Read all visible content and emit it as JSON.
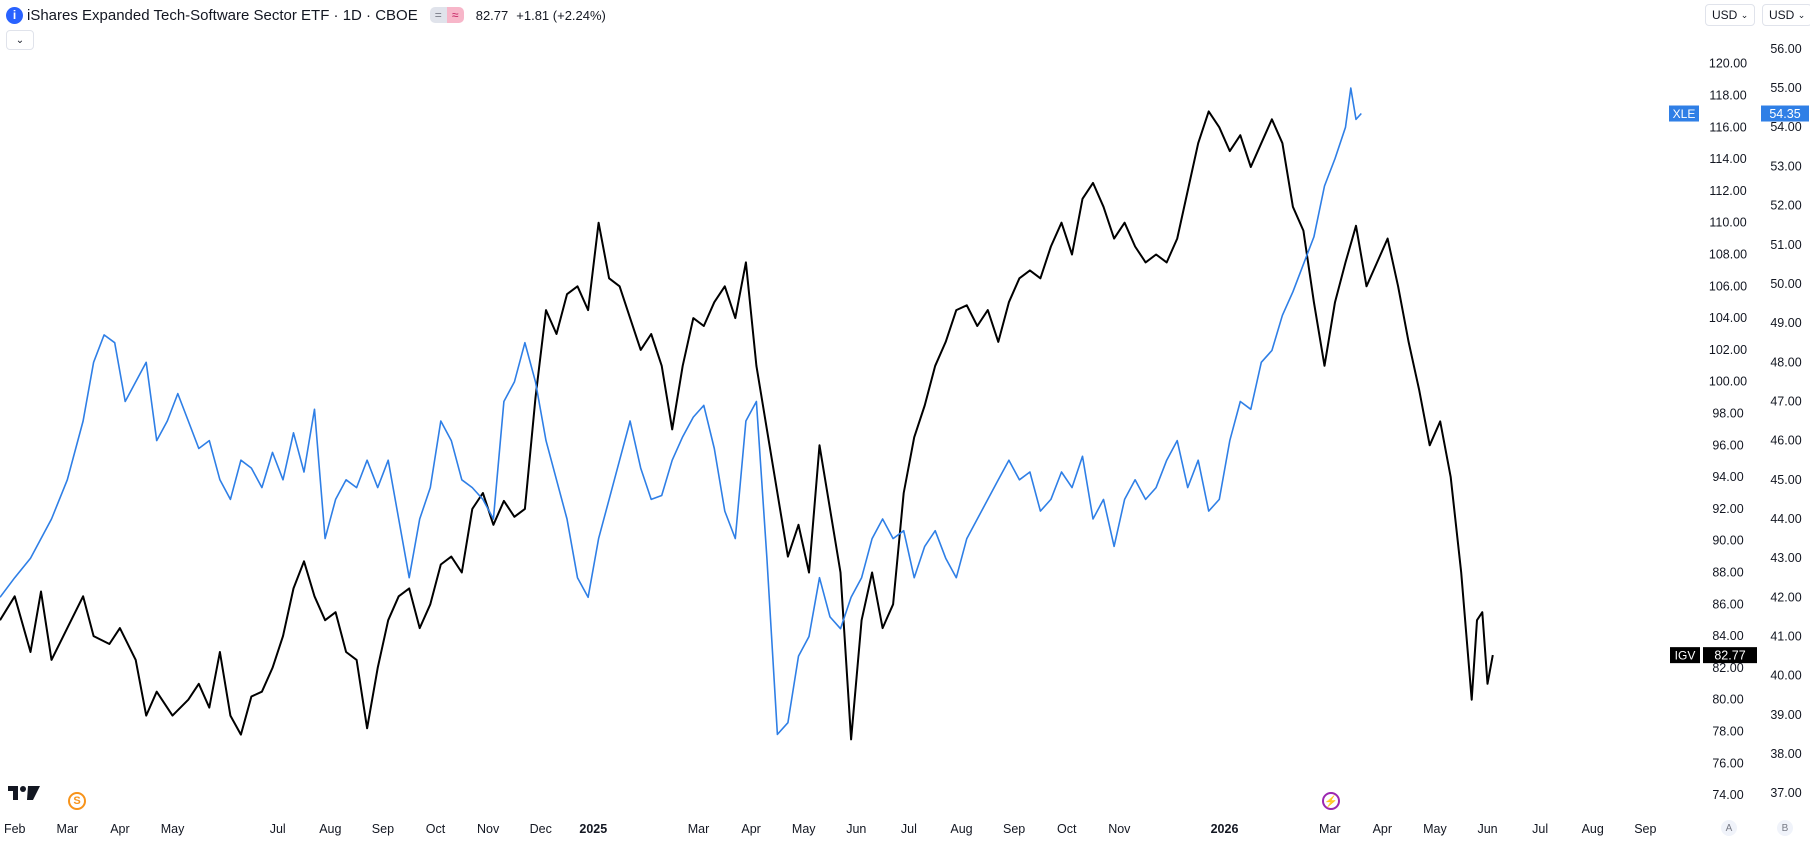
{
  "header": {
    "info_icon": "i",
    "title": "iShares Expanded Tech-Software Sector ETF · 1D · CBOE",
    "pill_icons": [
      "=",
      "≈"
    ],
    "price": "82.77",
    "change": "+1.81 (+2.24%)",
    "collapse_icon": "⌄"
  },
  "currency_buttons": {
    "left": "USD",
    "right": "USD"
  },
  "event_icons": {
    "s_label": "S",
    "bolt_label": "⚡"
  },
  "bottom_buttons": [
    "A",
    "B"
  ],
  "colors": {
    "igv": "#000000",
    "xle": "#2f7fe6",
    "badge_xle": "#2f7fe6",
    "badge_igv": "#000000"
  },
  "chart_data": {
    "type": "line",
    "title": "iShares Expanded Tech-Software Sector ETF",
    "x_ticks": [
      {
        "label": "Feb",
        "x": 1.5
      },
      {
        "label": "Mar",
        "x": 2.5
      },
      {
        "label": "Apr",
        "x": 3.5
      },
      {
        "label": "May",
        "x": 4.5
      },
      {
        "label": "Jul",
        "x": 6.5
      },
      {
        "label": "Aug",
        "x": 7.5
      },
      {
        "label": "Sep",
        "x": 8.5
      },
      {
        "label": "Oct",
        "x": 9.5
      },
      {
        "label": "Nov",
        "x": 10.5
      },
      {
        "label": "Dec",
        "x": 11.5
      },
      {
        "label": "2025",
        "x": 12.5,
        "bold": true
      },
      {
        "label": "Mar",
        "x": 14.5
      },
      {
        "label": "Apr",
        "x": 15.5
      },
      {
        "label": "May",
        "x": 16.5
      },
      {
        "label": "Jun",
        "x": 17.5
      },
      {
        "label": "Jul",
        "x": 18.5
      },
      {
        "label": "Aug",
        "x": 19.5
      },
      {
        "label": "Sep",
        "x": 20.5
      },
      {
        "label": "Oct",
        "x": 21.5
      },
      {
        "label": "Nov",
        "x": 22.5
      },
      {
        "label": "2026",
        "x": 24.5,
        "bold": true
      },
      {
        "label": "Mar",
        "x": 26.5
      },
      {
        "label": "Apr",
        "x": 27.5
      },
      {
        "label": "May",
        "x": 28.5
      },
      {
        "label": "Jun",
        "x": 29.5
      },
      {
        "label": "Jul",
        "x": 30.5
      },
      {
        "label": "Aug",
        "x": 31.5
      },
      {
        "label": "Sep",
        "x": 32.5
      }
    ],
    "x_range": [
      1.22,
      36.5
    ],
    "left_axis": {
      "ylim": [
        73.5,
        121.3
      ],
      "ticks": [
        "120.00",
        "118.00",
        "116.00",
        "114.00",
        "112.00",
        "110.00",
        "108.00",
        "106.00",
        "104.00",
        "102.00",
        "100.00",
        "98.00",
        "96.00",
        "94.00",
        "92.00",
        "90.00",
        "88.00",
        "86.00",
        "84.00",
        "82.00",
        "80.00",
        "78.00",
        "76.00",
        "74.00"
      ]
    },
    "right_axis": {
      "ylim": [
        36.75,
        56.15
      ],
      "ticks": [
        "56.00",
        "55.00",
        "54.00",
        "53.00",
        "52.00",
        "51.00",
        "50.00",
        "49.00",
        "48.00",
        "47.00",
        "46.00",
        "45.00",
        "44.00",
        "43.00",
        "42.00",
        "41.00",
        "40.00",
        "39.00",
        "38.00",
        "37.00"
      ]
    },
    "series": [
      {
        "name": "IGV",
        "axis": "left",
        "color": "#000000",
        "last_label": "82.77",
        "points": [
          [
            1.22,
            85
          ],
          [
            1.5,
            86.5
          ],
          [
            1.8,
            83
          ],
          [
            2.0,
            86.8
          ],
          [
            2.2,
            82.5
          ],
          [
            2.5,
            84.5
          ],
          [
            2.8,
            86.5
          ],
          [
            3.0,
            84
          ],
          [
            3.3,
            83.5
          ],
          [
            3.5,
            84.5
          ],
          [
            3.8,
            82.5
          ],
          [
            4.0,
            79
          ],
          [
            4.2,
            80.5
          ],
          [
            4.5,
            79
          ],
          [
            4.8,
            80
          ],
          [
            5.0,
            81
          ],
          [
            5.2,
            79.5
          ],
          [
            5.4,
            83
          ],
          [
            5.6,
            79
          ],
          [
            5.8,
            77.8
          ],
          [
            6.0,
            80.2
          ],
          [
            6.2,
            80.5
          ],
          [
            6.4,
            82
          ],
          [
            6.6,
            84
          ],
          [
            6.8,
            87
          ],
          [
            7.0,
            88.7
          ],
          [
            7.2,
            86.5
          ],
          [
            7.4,
            85
          ],
          [
            7.6,
            85.5
          ],
          [
            7.8,
            83
          ],
          [
            8.0,
            82.5
          ],
          [
            8.2,
            78.2
          ],
          [
            8.4,
            82
          ],
          [
            8.6,
            85
          ],
          [
            8.8,
            86.5
          ],
          [
            9.0,
            87
          ],
          [
            9.2,
            84.5
          ],
          [
            9.4,
            86
          ],
          [
            9.6,
            88.5
          ],
          [
            9.8,
            89
          ],
          [
            10.0,
            88
          ],
          [
            10.2,
            92
          ],
          [
            10.4,
            93
          ],
          [
            10.6,
            91
          ],
          [
            10.8,
            92.5
          ],
          [
            11.0,
            91.5
          ],
          [
            11.2,
            92
          ],
          [
            11.4,
            99
          ],
          [
            11.6,
            104.5
          ],
          [
            11.8,
            103
          ],
          [
            12.0,
            105.5
          ],
          [
            12.2,
            106
          ],
          [
            12.4,
            104.5
          ],
          [
            12.6,
            110
          ],
          [
            12.8,
            106.5
          ],
          [
            13.0,
            106
          ],
          [
            13.2,
            104
          ],
          [
            13.4,
            102
          ],
          [
            13.6,
            103
          ],
          [
            13.8,
            101
          ],
          [
            14.0,
            97
          ],
          [
            14.2,
            101
          ],
          [
            14.4,
            104
          ],
          [
            14.6,
            103.5
          ],
          [
            14.8,
            105
          ],
          [
            15.0,
            106
          ],
          [
            15.2,
            104
          ],
          [
            15.4,
            107.5
          ],
          [
            15.6,
            101
          ],
          [
            15.8,
            97
          ],
          [
            16.0,
            93
          ],
          [
            16.2,
            89
          ],
          [
            16.4,
            91
          ],
          [
            16.6,
            88
          ],
          [
            16.8,
            96
          ],
          [
            17.0,
            92
          ],
          [
            17.2,
            88
          ],
          [
            17.4,
            77.5
          ],
          [
            17.6,
            85
          ],
          [
            17.8,
            88
          ],
          [
            18.0,
            84.5
          ],
          [
            18.2,
            86
          ],
          [
            18.4,
            93
          ],
          [
            18.6,
            96.5
          ],
          [
            18.8,
            98.5
          ],
          [
            19.0,
            101
          ],
          [
            19.2,
            102.5
          ],
          [
            19.4,
            104.5
          ],
          [
            19.6,
            104.8
          ],
          [
            19.8,
            103.5
          ],
          [
            20.0,
            104.5
          ],
          [
            20.2,
            102.5
          ],
          [
            20.4,
            105
          ],
          [
            20.6,
            106.5
          ],
          [
            20.8,
            107
          ],
          [
            21.0,
            106.5
          ],
          [
            21.2,
            108.5
          ],
          [
            21.4,
            110
          ],
          [
            21.6,
            108
          ],
          [
            21.8,
            111.5
          ],
          [
            22.0,
            112.5
          ],
          [
            22.2,
            111
          ],
          [
            22.4,
            109
          ],
          [
            22.6,
            110
          ],
          [
            22.8,
            108.5
          ],
          [
            23.0,
            107.5
          ],
          [
            23.2,
            108
          ],
          [
            23.4,
            107.5
          ],
          [
            23.6,
            109
          ],
          [
            23.8,
            112
          ],
          [
            24.0,
            115
          ],
          [
            24.2,
            117
          ],
          [
            24.4,
            116
          ],
          [
            24.6,
            114.5
          ],
          [
            24.8,
            115.5
          ],
          [
            25.0,
            113.5
          ],
          [
            25.2,
            115
          ],
          [
            25.4,
            116.5
          ],
          [
            25.6,
            115
          ],
          [
            25.8,
            111
          ],
          [
            26.0,
            109.5
          ],
          [
            26.2,
            105
          ],
          [
            26.4,
            101
          ],
          [
            26.6,
            105
          ],
          [
            26.8,
            107.5
          ],
          [
            27.0,
            109.8
          ],
          [
            27.2,
            106
          ],
          [
            27.4,
            107.5
          ],
          [
            27.6,
            109
          ],
          [
            27.8,
            106
          ],
          [
            28.0,
            102.5
          ],
          [
            28.2,
            99.5
          ],
          [
            28.4,
            96
          ],
          [
            28.6,
            97.5
          ],
          [
            28.8,
            94
          ],
          [
            29.0,
            88
          ],
          [
            29.2,
            80
          ],
          [
            29.3,
            85
          ],
          [
            29.4,
            85.5
          ],
          [
            29.5,
            81
          ],
          [
            29.6,
            82.8
          ]
        ]
      },
      {
        "name": "XLE",
        "axis": "right",
        "color": "#2f7fe6",
        "last_label": "54.35",
        "points": [
          [
            1.22,
            42
          ],
          [
            1.5,
            42.5
          ],
          [
            1.8,
            43
          ],
          [
            2.0,
            43.5
          ],
          [
            2.2,
            44
          ],
          [
            2.5,
            45
          ],
          [
            2.8,
            46.5
          ],
          [
            3.0,
            48
          ],
          [
            3.2,
            48.7
          ],
          [
            3.4,
            48.5
          ],
          [
            3.6,
            47
          ],
          [
            3.8,
            47.5
          ],
          [
            4.0,
            48
          ],
          [
            4.2,
            46
          ],
          [
            4.4,
            46.5
          ],
          [
            4.6,
            47.2
          ],
          [
            4.8,
            46.5
          ],
          [
            5.0,
            45.8
          ],
          [
            5.2,
            46
          ],
          [
            5.4,
            45
          ],
          [
            5.6,
            44.5
          ],
          [
            5.8,
            45.5
          ],
          [
            6.0,
            45.3
          ],
          [
            6.2,
            44.8
          ],
          [
            6.4,
            45.7
          ],
          [
            6.6,
            45
          ],
          [
            6.8,
            46.2
          ],
          [
            7.0,
            45.2
          ],
          [
            7.2,
            46.8
          ],
          [
            7.4,
            43.5
          ],
          [
            7.6,
            44.5
          ],
          [
            7.8,
            45
          ],
          [
            8.0,
            44.8
          ],
          [
            8.2,
            45.5
          ],
          [
            8.4,
            44.8
          ],
          [
            8.6,
            45.5
          ],
          [
            8.8,
            44
          ],
          [
            9.0,
            42.5
          ],
          [
            9.2,
            44
          ],
          [
            9.4,
            44.8
          ],
          [
            9.6,
            46.5
          ],
          [
            9.8,
            46
          ],
          [
            10.0,
            45
          ],
          [
            10.2,
            44.8
          ],
          [
            10.4,
            44.5
          ],
          [
            10.6,
            44
          ],
          [
            10.8,
            47
          ],
          [
            11.0,
            47.5
          ],
          [
            11.2,
            48.5
          ],
          [
            11.4,
            47.5
          ],
          [
            11.6,
            46
          ],
          [
            11.8,
            45
          ],
          [
            12.0,
            44
          ],
          [
            12.2,
            42.5
          ],
          [
            12.4,
            42
          ],
          [
            12.6,
            43.5
          ],
          [
            12.8,
            44.5
          ],
          [
            13.0,
            45.5
          ],
          [
            13.2,
            46.5
          ],
          [
            13.4,
            45.3
          ],
          [
            13.6,
            44.5
          ],
          [
            13.8,
            44.6
          ],
          [
            14.0,
            45.5
          ],
          [
            14.2,
            46.1
          ],
          [
            14.4,
            46.6
          ],
          [
            14.6,
            46.9
          ],
          [
            14.8,
            45.8
          ],
          [
            15.0,
            44.2
          ],
          [
            15.2,
            43.5
          ],
          [
            15.4,
            46.5
          ],
          [
            15.6,
            47
          ],
          [
            15.8,
            43
          ],
          [
            16.0,
            38.5
          ],
          [
            16.2,
            38.8
          ],
          [
            16.4,
            40.5
          ],
          [
            16.6,
            41
          ],
          [
            16.8,
            42.5
          ],
          [
            17.0,
            41.5
          ],
          [
            17.2,
            41.2
          ],
          [
            17.4,
            42
          ],
          [
            17.6,
            42.5
          ],
          [
            17.8,
            43.5
          ],
          [
            18.0,
            44
          ],
          [
            18.2,
            43.5
          ],
          [
            18.4,
            43.7
          ],
          [
            18.6,
            42.5
          ],
          [
            18.8,
            43.3
          ],
          [
            19.0,
            43.7
          ],
          [
            19.2,
            43
          ],
          [
            19.4,
            42.5
          ],
          [
            19.6,
            43.5
          ],
          [
            19.8,
            44
          ],
          [
            20.0,
            44.5
          ],
          [
            20.2,
            45
          ],
          [
            20.4,
            45.5
          ],
          [
            20.6,
            45
          ],
          [
            20.8,
            45.2
          ],
          [
            21.0,
            44.2
          ],
          [
            21.2,
            44.5
          ],
          [
            21.4,
            45.2
          ],
          [
            21.6,
            44.8
          ],
          [
            21.8,
            45.6
          ],
          [
            22.0,
            44
          ],
          [
            22.2,
            44.5
          ],
          [
            22.4,
            43.3
          ],
          [
            22.6,
            44.5
          ],
          [
            22.8,
            45
          ],
          [
            23.0,
            44.5
          ],
          [
            23.2,
            44.8
          ],
          [
            23.4,
            45.5
          ],
          [
            23.6,
            46
          ],
          [
            23.8,
            44.8
          ],
          [
            24.0,
            45.5
          ],
          [
            24.2,
            44.2
          ],
          [
            24.4,
            44.5
          ],
          [
            24.6,
            46
          ],
          [
            24.8,
            47
          ],
          [
            25.0,
            46.8
          ],
          [
            25.2,
            48
          ],
          [
            25.4,
            48.3
          ],
          [
            25.6,
            49.2
          ],
          [
            25.8,
            49.8
          ],
          [
            26.0,
            50.5
          ],
          [
            26.2,
            51.2
          ],
          [
            26.4,
            52.5
          ],
          [
            26.6,
            53.2
          ],
          [
            26.8,
            54
          ],
          [
            26.9,
            55
          ],
          [
            27.0,
            54.2
          ],
          [
            27.1,
            54.35
          ]
        ]
      }
    ]
  }
}
